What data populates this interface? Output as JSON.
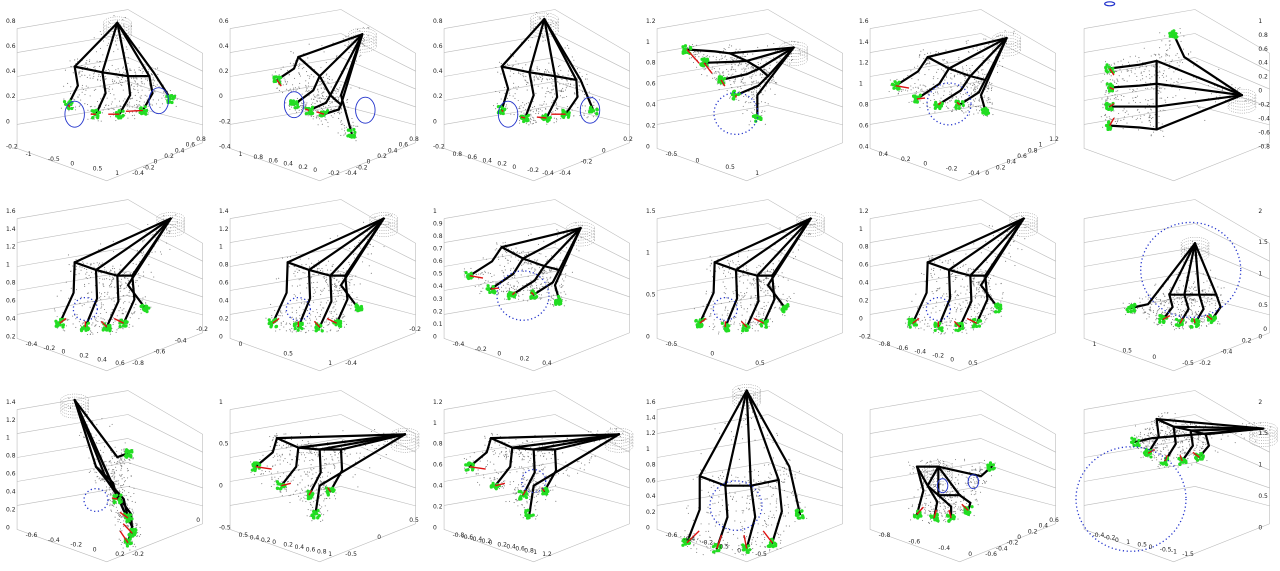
{
  "figure": {
    "rows": 3,
    "cols": 6,
    "colors": {
      "skeleton": "#000000",
      "mesh": "#7a7a7a",
      "contact": "#22dd22",
      "force": "#dd1111",
      "circle": "#2233cc",
      "axes": "#bbbbbb"
    },
    "panels": [
      {
        "name": "r1c1",
        "pose": "fist-front",
        "circle": "two-solid",
        "ticksY": [
          "0.8",
          "0.6",
          "0.4",
          "0.2",
          "0",
          "-0.2"
        ],
        "ticksX": [
          "-1",
          "-0.5",
          "0",
          "0.5",
          "1"
        ],
        "ticksZ": [
          "-0.4",
          "-0.2",
          "0",
          "0.2",
          "0.4",
          "0.6",
          "0.8"
        ]
      },
      {
        "name": "r1c2",
        "pose": "grasp-side",
        "circle": "two-solid",
        "ticksY": [
          "0.6",
          "0.4",
          "0.2",
          "0",
          "-0.2",
          "-0.4"
        ],
        "ticksX": [
          "1",
          "0.8",
          "0.6",
          "0.4",
          "0.2",
          "0",
          "-0.2"
        ],
        "ticksZ": [
          "-0.4",
          "-0.2",
          "0",
          "0.2",
          "0.4",
          "0.6",
          "0.8"
        ]
      },
      {
        "name": "r1c3",
        "pose": "grasp-front",
        "circle": "two-solid",
        "ticksY": [
          "0.8",
          "0.6",
          "0.4",
          "0.2",
          "0",
          "-0.2"
        ],
        "ticksX": [
          "0.8",
          "0.6",
          "0.4",
          "0.2",
          "0",
          "-0.2",
          "-0.4"
        ],
        "ticksZ": [
          "-0.4",
          "-0.2",
          "0",
          "0.2"
        ]
      },
      {
        "name": "r1c4",
        "pose": "flat-open",
        "circle": "dotted",
        "ticksY": [
          "1.2",
          "1",
          "0.8",
          "0.6",
          "0.4",
          "0.2",
          "0"
        ],
        "ticksX": [
          "-0.5",
          "0",
          "0.5",
          "1"
        ],
        "ticksZ": []
      },
      {
        "name": "r1c5",
        "pose": "grasp-wide",
        "circle": "dotted",
        "ticksY": [
          "1.6",
          "1.4",
          "1.2",
          "1",
          "0.8",
          "0.6",
          "0.4"
        ],
        "ticksX": [
          "0.4",
          "0.2",
          "0",
          "-0.2",
          "-0.4"
        ],
        "ticksZ": [
          "0",
          "0.2",
          "0.4",
          "0.6",
          "0.8",
          "1",
          "1.2"
        ]
      },
      {
        "name": "r1c6",
        "pose": "top-view",
        "circle": "small-top",
        "ticksY": [
          "1",
          "0.8",
          "0.6",
          "0.4",
          "0.2",
          "0",
          "-0.2",
          "-0.4",
          "-0.6",
          "-0.8"
        ],
        "ticksX": [],
        "ticksZ": []
      },
      {
        "name": "r2c1",
        "pose": "pinch-down",
        "circle": "dotted-small",
        "ticksY": [
          "1.6",
          "1.4",
          "1.2",
          "1",
          "0.8",
          "0.6",
          "0.4",
          "0.2"
        ],
        "ticksX": [
          "-0.4",
          "-0.2",
          "0",
          "0.2",
          "0.4",
          "0.6"
        ],
        "ticksZ": [
          "-0.8",
          "-0.6",
          "-0.4",
          "-0.2"
        ]
      },
      {
        "name": "r2c2",
        "pose": "pinch-down",
        "circle": "dotted-small",
        "ticksY": [
          "1.4",
          "1.2",
          "1",
          "0.8",
          "0.6",
          "0.4",
          "0.2",
          "0"
        ],
        "ticksX": [
          "0",
          "0.5",
          "1"
        ],
        "ticksZ": [
          "-0.4",
          "-0.2"
        ]
      },
      {
        "name": "r2c3",
        "pose": "grasp-wide",
        "circle": "dotted-mid",
        "ticksY": [
          "1",
          "0.9",
          "0.8",
          "0.7",
          "0.6",
          "0.5",
          "0.4",
          "0.3",
          "0.2",
          "0.1",
          "0"
        ],
        "ticksX": [
          "-0.4",
          "-0.2",
          "0",
          "0.2",
          "0.4"
        ],
        "ticksZ": []
      },
      {
        "name": "r2c4",
        "pose": "pinch-down",
        "circle": "dotted-small",
        "ticksY": [
          "1.5",
          "1",
          "0.5",
          "0"
        ],
        "ticksX": [
          "-0.5",
          "0",
          "0.5"
        ],
        "ticksZ": []
      },
      {
        "name": "r2c5",
        "pose": "pinch-down",
        "circle": "dotted-small",
        "ticksY": [
          "1.2",
          "1",
          "0.8",
          "0.6",
          "0.4",
          "0.2",
          "0",
          "-0.2"
        ],
        "ticksX": [
          "-0.8",
          "-0.6",
          "-0.4",
          "-0.2",
          "0",
          "0.5"
        ],
        "ticksZ": []
      },
      {
        "name": "r2c6",
        "pose": "fist-back",
        "circle": "dotted-big",
        "ticksY": [
          "2",
          "1.5",
          "1",
          "0.5",
          "0"
        ],
        "ticksX": [
          "1",
          "0.5",
          "0",
          "-0.5"
        ],
        "ticksZ": [
          "-0.2",
          "-0.4",
          "0.2",
          "0"
        ]
      },
      {
        "name": "r3c1",
        "pose": "tall-side",
        "circle": "dotted-small",
        "ticksY": [
          "1.4",
          "1.2",
          "1",
          "0.8",
          "0.6",
          "0.4",
          "0.2",
          "0"
        ],
        "ticksX": [
          "-0.6",
          "-0.4",
          "-0.2",
          "0",
          "0.2"
        ],
        "ticksZ": [
          "-0.2",
          "0"
        ]
      },
      {
        "name": "r3c2",
        "pose": "long-pinch",
        "circle": "none",
        "ticksY": [
          "1",
          "0.5",
          "0",
          "-0.5"
        ],
        "ticksX": [
          "0.5",
          "0.4",
          "0.2",
          "0",
          "0.2",
          "0.4",
          "0.6",
          "0.8",
          "1"
        ],
        "ticksZ": [
          "-0.5",
          "0",
          "0.5"
        ]
      },
      {
        "name": "r3c3",
        "pose": "long-pinch",
        "circle": "dotted-small",
        "ticksY": [
          "1.2",
          "1",
          "0.8",
          "0.6",
          "0.4",
          "0.2",
          "0"
        ],
        "ticksX": [
          "-0.8",
          "-0.6",
          "-0.4",
          "-0.2",
          "0",
          "0.2",
          "0.4",
          "0.6",
          "0.8",
          "1",
          "1.2"
        ],
        "ticksZ": []
      },
      {
        "name": "r3c4",
        "pose": "splayed-up",
        "circle": "dotted-mid",
        "ticksY": [
          "1.6",
          "1.4",
          "1.2",
          "1",
          "0.8",
          "0.6",
          "0.4",
          "0.2",
          "0"
        ],
        "ticksX": [
          "-0.6",
          "-0.4",
          "-0.2",
          "0.5",
          "0",
          "-0.5"
        ],
        "ticksZ": []
      },
      {
        "name": "r3c5",
        "pose": "fist-tilted",
        "circle": "two-solid-small",
        "ticksY": [],
        "ticksX": [
          "-0.8",
          "-0.6",
          "-0.4",
          "0"
        ],
        "ticksZ": [
          "-0.6",
          "-0.4",
          "-0.2",
          "0",
          "0.2",
          "0.4",
          "0.6"
        ]
      },
      {
        "name": "r3c6",
        "pose": "fist-side",
        "circle": "dotted-huge",
        "ticksY": [
          "2",
          "1.5",
          "1",
          "0.5",
          "0"
        ],
        "ticksX": [
          "-0.4",
          "-0.2",
          "0",
          "1",
          "0.5",
          "0",
          "-0.5",
          "-1",
          "-1.5"
        ],
        "ticksZ": []
      }
    ]
  }
}
